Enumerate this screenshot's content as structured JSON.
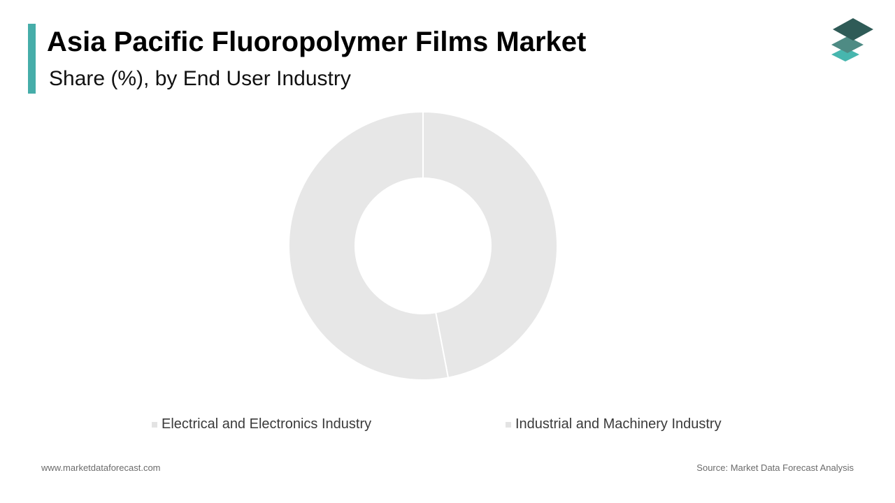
{
  "header": {
    "title": "Asia Pacific Fluoropolymer Films Market",
    "subtitle": "Share (%), by End User Industry"
  },
  "colors": {
    "accent": "#46ADA9",
    "logo_top": "#2F5B57",
    "logo_middle": "#4E8B84",
    "logo_bottom": "#47B6AE",
    "slice": "#E7E7E7",
    "separator": "#FFFFFF",
    "legend_swatch": "#E3E3E3"
  },
  "chart_data": {
    "type": "pie",
    "variant": "donut",
    "categories": [
      "Electrical and Electronics Industry",
      "Industrial and Machinery Industry"
    ],
    "values": [
      47,
      53
    ],
    "legend": "bottom"
  },
  "footer": {
    "website": "www.marketdataforecast.com",
    "source": "Source: Market Data Forecast Analysis"
  }
}
